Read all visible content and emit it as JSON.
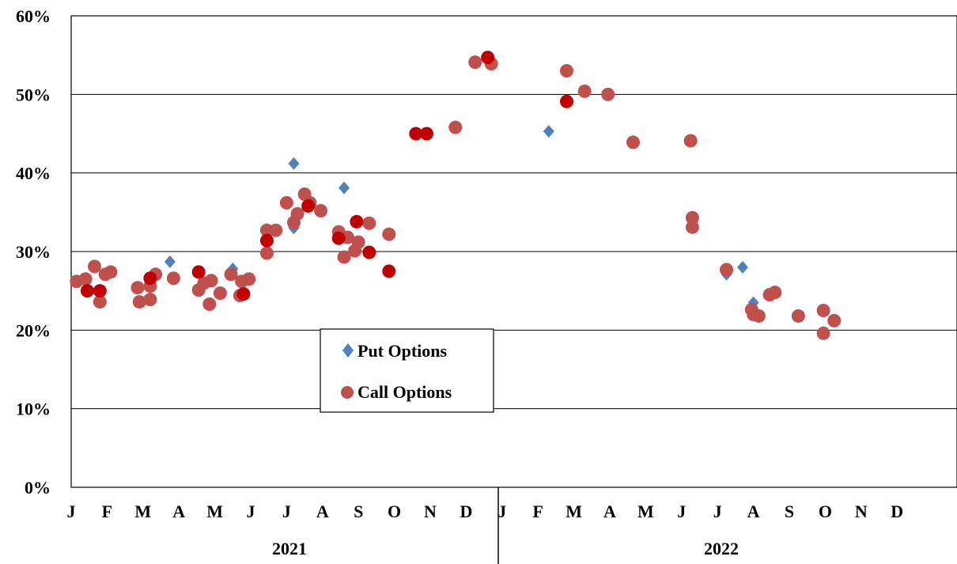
{
  "chart_data": {
    "type": "scatter",
    "title": "",
    "xlabel": "",
    "ylabel": "",
    "ylim": [
      0,
      60
    ],
    "y_tick_labels": [
      "0%",
      "10%",
      "20%",
      "30%",
      "40%",
      "50%",
      "60%"
    ],
    "month_labels": [
      "J",
      "F",
      "M",
      "A",
      "M",
      "J",
      "J",
      "A",
      "S",
      "O",
      "N",
      "D",
      "J",
      "F",
      "M",
      "A",
      "M",
      "J",
      "J",
      "A",
      "S",
      "O",
      "N",
      "D"
    ],
    "year_labels": [
      "2021",
      "2022"
    ],
    "x_unit": "months since Jan 2021",
    "grid": true,
    "legend": {
      "placement": "center",
      "entries": [
        "Put Options",
        "Call Options"
      ]
    },
    "colors": {
      "put": "#4F81BD",
      "call": "#C0504D",
      "call_dark": "#C00000"
    },
    "series": [
      {
        "name": "Put Options",
        "marker": "diamond",
        "color": "#4F81BD",
        "points": [
          [
            2.75,
            28.7
          ],
          [
            4.5,
            27.8
          ],
          [
            6.2,
            41.2
          ],
          [
            6.2,
            33.0
          ],
          [
            7.6,
            38.1
          ],
          [
            13.3,
            45.3
          ],
          [
            18.25,
            27.1
          ],
          [
            18.7,
            28.0
          ],
          [
            19.0,
            23.5
          ]
        ]
      },
      {
        "name": "Call Options",
        "marker": "circle",
        "color": "#C0504D",
        "points": [
          [
            0.15,
            26.2
          ],
          [
            0.4,
            26.5
          ],
          [
            0.65,
            28.1
          ],
          [
            0.8,
            23.6
          ],
          [
            0.95,
            27.1
          ],
          [
            1.1,
            27.4
          ],
          [
            1.85,
            25.4
          ],
          [
            1.9,
            23.6
          ],
          [
            2.2,
            23.9
          ],
          [
            2.2,
            25.6
          ],
          [
            2.35,
            27.1
          ],
          [
            2.85,
            26.6
          ],
          [
            3.55,
            25.1
          ],
          [
            3.7,
            26.0
          ],
          [
            3.85,
            23.3
          ],
          [
            3.9,
            26.3
          ],
          [
            4.15,
            24.7
          ],
          [
            4.45,
            27.1
          ],
          [
            4.7,
            24.4
          ],
          [
            4.75,
            26.2
          ],
          [
            4.95,
            26.5
          ],
          [
            5.45,
            32.7
          ],
          [
            5.45,
            29.8
          ],
          [
            5.7,
            32.7
          ],
          [
            6.0,
            36.2
          ],
          [
            6.2,
            33.7
          ],
          [
            6.3,
            34.8
          ],
          [
            6.5,
            37.3
          ],
          [
            6.65,
            36.2
          ],
          [
            6.95,
            35.2
          ],
          [
            7.45,
            32.5
          ],
          [
            7.6,
            29.3
          ],
          [
            7.7,
            31.8
          ],
          [
            7.9,
            30.1
          ],
          [
            8.0,
            31.2
          ],
          [
            8.3,
            33.6
          ],
          [
            8.85,
            32.2
          ],
          [
            10.7,
            45.8
          ],
          [
            11.25,
            54.1
          ],
          [
            11.7,
            53.9
          ],
          [
            13.8,
            53.0
          ],
          [
            14.3,
            50.4
          ],
          [
            14.95,
            50.0
          ],
          [
            15.65,
            43.9
          ],
          [
            17.25,
            44.1
          ],
          [
            17.3,
            34.3
          ],
          [
            17.3,
            33.1
          ],
          [
            18.25,
            27.7
          ],
          [
            18.95,
            22.6
          ],
          [
            19.0,
            22.0
          ],
          [
            19.15,
            21.8
          ],
          [
            19.45,
            24.5
          ],
          [
            19.6,
            24.8
          ],
          [
            20.25,
            21.8
          ],
          [
            20.95,
            22.5
          ],
          [
            20.95,
            19.6
          ],
          [
            21.25,
            21.2
          ]
        ]
      },
      {
        "name": "Call Options",
        "marker": "circle",
        "color": "#C00000",
        "points": [
          [
            0.45,
            25.0
          ],
          [
            0.8,
            25.0
          ],
          [
            2.2,
            26.6
          ],
          [
            3.55,
            27.4
          ],
          [
            4.8,
            24.6
          ],
          [
            5.45,
            31.4
          ],
          [
            6.6,
            35.8
          ],
          [
            7.45,
            31.7
          ],
          [
            7.95,
            33.8
          ],
          [
            8.3,
            29.9
          ],
          [
            8.85,
            27.5
          ],
          [
            9.6,
            45.0
          ],
          [
            9.9,
            45.0
          ],
          [
            11.6,
            54.7
          ],
          [
            13.8,
            49.1
          ]
        ]
      }
    ]
  }
}
